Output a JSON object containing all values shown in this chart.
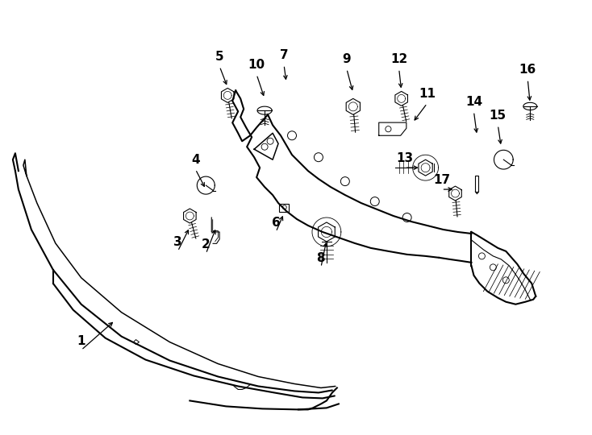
{
  "background_color": "#ffffff",
  "line_color": "#000000",
  "figure_width": 7.34,
  "figure_height": 5.4,
  "dpi": 100,
  "parts_labels": [
    [
      "1",
      1.0,
      1.05,
      1.42,
      1.42
    ],
    [
      "2",
      2.55,
      2.25,
      2.68,
      2.58
    ],
    [
      "3",
      2.2,
      2.28,
      2.35,
      2.58
    ],
    [
      "4",
      2.42,
      3.3,
      2.55,
      3.05
    ],
    [
      "5",
      2.72,
      4.58,
      2.82,
      4.32
    ],
    [
      "6",
      3.42,
      2.52,
      3.52,
      2.75
    ],
    [
      "7",
      3.52,
      4.6,
      3.55,
      4.38
    ],
    [
      "8",
      3.98,
      2.08,
      4.05,
      2.42
    ],
    [
      "9",
      4.3,
      4.55,
      4.38,
      4.25
    ],
    [
      "10",
      3.18,
      4.48,
      3.28,
      4.18
    ],
    [
      "11",
      5.3,
      4.12,
      5.12,
      3.88
    ],
    [
      "12",
      4.95,
      4.55,
      4.98,
      4.28
    ],
    [
      "13",
      5.02,
      3.32,
      5.22,
      3.32
    ],
    [
      "14",
      5.88,
      4.02,
      5.92,
      3.72
    ],
    [
      "15",
      6.18,
      3.85,
      6.22,
      3.58
    ],
    [
      "16",
      6.55,
      4.42,
      6.58,
      4.12
    ],
    [
      "17",
      5.48,
      3.05,
      5.65,
      3.05
    ]
  ]
}
